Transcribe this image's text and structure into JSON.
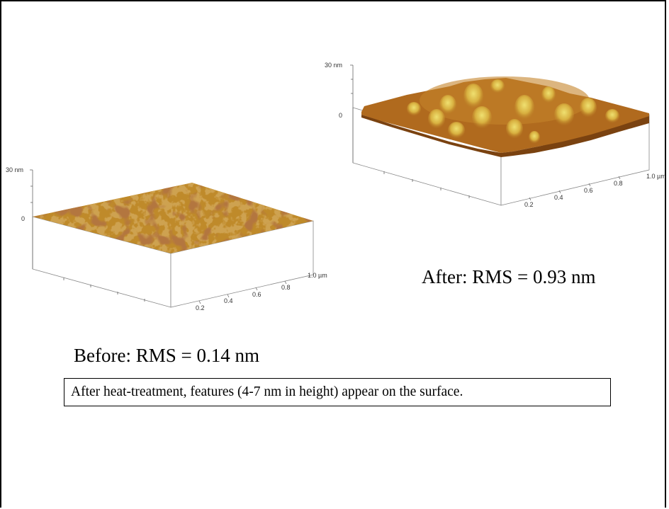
{
  "before_plot": {
    "z_top_label": "30 nm",
    "z_zero_label": "0",
    "x_ticks": [
      "0.2",
      "0.4",
      "0.6",
      "0.8",
      "1.0 µm"
    ],
    "surface_colors": [
      "#9a4a12",
      "#b8651d",
      "#cfa232",
      "#d8b43c",
      "#7a3a10"
    ]
  },
  "after_plot": {
    "z_top_label": "30 nm",
    "z_zero_label": "0",
    "x_ticks": [
      "0.2",
      "0.4",
      "0.6",
      "0.8",
      "1.0 µm"
    ],
    "surface_colors": [
      "#a45a18",
      "#c47a26",
      "#dbb646",
      "#e3c955"
    ]
  },
  "captions": {
    "after": "After: RMS = 0.93 nm",
    "before": "Before: RMS = 0.14 nm"
  },
  "note": "After heat-treatment, features (4-7 nm in height) appear on the surface."
}
